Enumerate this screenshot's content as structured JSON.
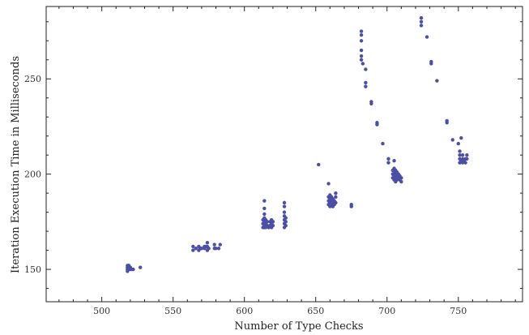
{
  "chart_data": {
    "type": "scatter",
    "title": "",
    "xlabel": "Number of Type Checks",
    "ylabel": "Iteration Execution Time in Milliseconds",
    "xlim": [
      461,
      795
    ],
    "ylim": [
      133,
      288
    ],
    "xticks": [
      500,
      550,
      600,
      650,
      700,
      750
    ],
    "yticks": [
      150,
      200,
      250
    ],
    "grid": false,
    "marker_color": "#4b4fa6",
    "series": [
      {
        "name": "",
        "points": [
          [
            518,
            150
          ],
          [
            518,
            151
          ],
          [
            518,
            152
          ],
          [
            518,
            149
          ],
          [
            519,
            150
          ],
          [
            519,
            151
          ],
          [
            519,
            152
          ],
          [
            520,
            150
          ],
          [
            520,
            151
          ],
          [
            521,
            150
          ],
          [
            522,
            150
          ],
          [
            527,
            151
          ],
          [
            564,
            162
          ],
          [
            564,
            160
          ],
          [
            566,
            161
          ],
          [
            568,
            160
          ],
          [
            568,
            162
          ],
          [
            569,
            161
          ],
          [
            570,
            161
          ],
          [
            572,
            161
          ],
          [
            572,
            162
          ],
          [
            573,
            162
          ],
          [
            574,
            160
          ],
          [
            574,
            162
          ],
          [
            574,
            164
          ],
          [
            575,
            161
          ],
          [
            579,
            161
          ],
          [
            579,
            163
          ],
          [
            580,
            161
          ],
          [
            582,
            161
          ],
          [
            583,
            163
          ],
          [
            613,
            172
          ],
          [
            613,
            174
          ],
          [
            613,
            176
          ],
          [
            614,
            172
          ],
          [
            614,
            173
          ],
          [
            614,
            175
          ],
          [
            614,
            177
          ],
          [
            614,
            179
          ],
          [
            614,
            182
          ],
          [
            614,
            186
          ],
          [
            615,
            172
          ],
          [
            615,
            174
          ],
          [
            615,
            176
          ],
          [
            616,
            173
          ],
          [
            616,
            175
          ],
          [
            617,
            172
          ],
          [
            618,
            173
          ],
          [
            618,
            175
          ],
          [
            619,
            172
          ],
          [
            619,
            174
          ],
          [
            619,
            176
          ],
          [
            620,
            173
          ],
          [
            620,
            175
          ],
          [
            628,
            172
          ],
          [
            628,
            174
          ],
          [
            628,
            176
          ],
          [
            628,
            178
          ],
          [
            628,
            180
          ],
          [
            628,
            183
          ],
          [
            628,
            185
          ],
          [
            629,
            173
          ],
          [
            629,
            175
          ],
          [
            629,
            177
          ],
          [
            652,
            205
          ],
          [
            659,
            195
          ],
          [
            659,
            184
          ],
          [
            659,
            186
          ],
          [
            659,
            188
          ],
          [
            660,
            183
          ],
          [
            660,
            185
          ],
          [
            660,
            187
          ],
          [
            660,
            189
          ],
          [
            661,
            184
          ],
          [
            661,
            186
          ],
          [
            661,
            188
          ],
          [
            662,
            183
          ],
          [
            662,
            185
          ],
          [
            662,
            187
          ],
          [
            663,
            184
          ],
          [
            663,
            186
          ],
          [
            664,
            185
          ],
          [
            664,
            188
          ],
          [
            664,
            190
          ],
          [
            675,
            184
          ],
          [
            675,
            183
          ],
          [
            682,
            275
          ],
          [
            682,
            273
          ],
          [
            682,
            270
          ],
          [
            682,
            265
          ],
          [
            682,
            262
          ],
          [
            682,
            260
          ],
          [
            683,
            258
          ],
          [
            685,
            255
          ],
          [
            685,
            248
          ],
          [
            685,
            246
          ],
          [
            689,
            238
          ],
          [
            689,
            237
          ],
          [
            693,
            227
          ],
          [
            693,
            226
          ],
          [
            697,
            216
          ],
          [
            701,
            208
          ],
          [
            701,
            206
          ],
          [
            704,
            198
          ],
          [
            704,
            200
          ],
          [
            704,
            202
          ],
          [
            705,
            197
          ],
          [
            705,
            199
          ],
          [
            705,
            201
          ],
          [
            705,
            203
          ],
          [
            705,
            207
          ],
          [
            706,
            196
          ],
          [
            706,
            198
          ],
          [
            706,
            200
          ],
          [
            706,
            202
          ],
          [
            707,
            197
          ],
          [
            707,
            199
          ],
          [
            707,
            201
          ],
          [
            708,
            198
          ],
          [
            708,
            200
          ],
          [
            709,
            197
          ],
          [
            709,
            199
          ],
          [
            710,
            196
          ],
          [
            710,
            198
          ],
          [
            724,
            282
          ],
          [
            724,
            280
          ],
          [
            724,
            278
          ],
          [
            728,
            272
          ],
          [
            731,
            259
          ],
          [
            731,
            258
          ],
          [
            735,
            249
          ],
          [
            742,
            228
          ],
          [
            742,
            227
          ],
          [
            746,
            218
          ],
          [
            750,
            216
          ],
          [
            751,
            206
          ],
          [
            751,
            208
          ],
          [
            751,
            210
          ],
          [
            751,
            212
          ],
          [
            752,
            207
          ],
          [
            752,
            219
          ],
          [
            753,
            206
          ],
          [
            753,
            208
          ],
          [
            753,
            210
          ],
          [
            754,
            207
          ],
          [
            755,
            206
          ],
          [
            755,
            208
          ],
          [
            756,
            208
          ],
          [
            756,
            210
          ]
        ]
      }
    ]
  }
}
